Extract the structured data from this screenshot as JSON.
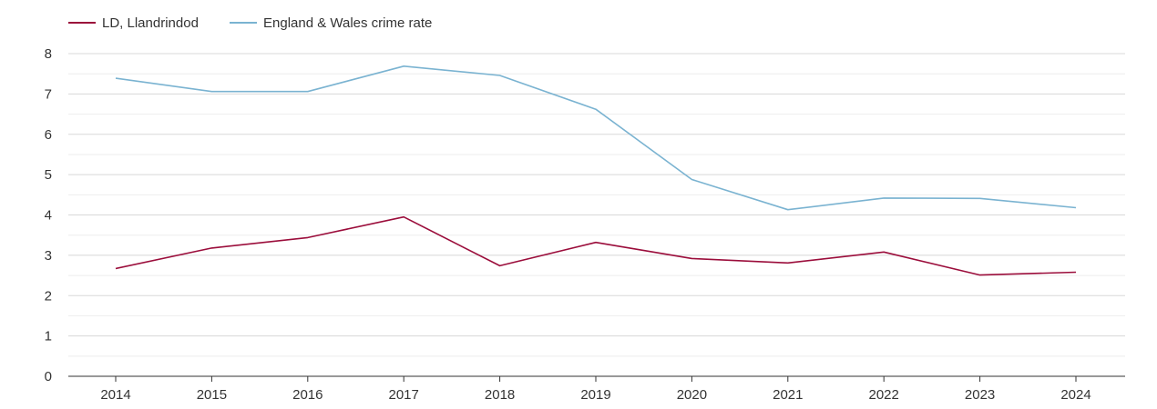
{
  "chart_data": {
    "type": "line",
    "title": "",
    "xlabel": "",
    "ylabel": "",
    "x": [
      "2014",
      "2015",
      "2016",
      "2017",
      "2018",
      "2019",
      "2020",
      "2021",
      "2022",
      "2023",
      "2024"
    ],
    "ylim": [
      0,
      8
    ],
    "yticks": [
      "0",
      "1",
      "2",
      "3",
      "4",
      "5",
      "6",
      "7",
      "8"
    ],
    "grid": true,
    "legend_position": "top-left",
    "series": [
      {
        "name": "LD, Llandrindod",
        "color": "#9b0d3b",
        "values": [
          2.67,
          3.18,
          3.44,
          3.95,
          2.74,
          3.32,
          2.92,
          2.81,
          3.08,
          2.51,
          2.58
        ]
      },
      {
        "name": "England & Wales crime rate",
        "color": "#7ab3d1",
        "values": [
          7.39,
          7.06,
          7.06,
          7.69,
          7.46,
          6.62,
          4.88,
          4.13,
          4.42,
          4.41,
          4.18
        ]
      }
    ]
  }
}
